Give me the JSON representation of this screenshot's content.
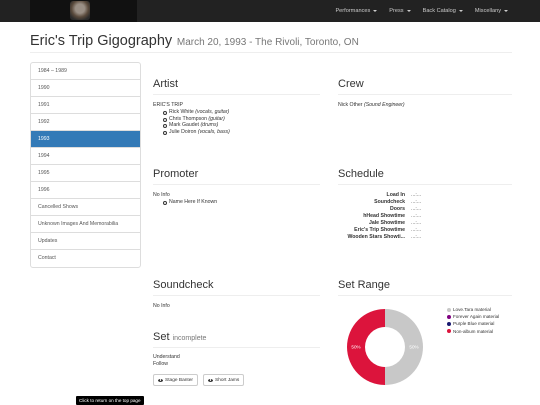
{
  "nav": {
    "items": [
      {
        "label": "Performances"
      },
      {
        "label": "Press"
      },
      {
        "label": "Back Catalog"
      },
      {
        "label": "Miscellany"
      }
    ]
  },
  "header": {
    "title": "Eric's Trip Gigography",
    "subtitle": "March 20, 1993 - The Rivoli, Toronto, ON"
  },
  "sidebar": {
    "items": [
      {
        "label": "1984 – 1989",
        "active": false
      },
      {
        "label": "1990",
        "active": false
      },
      {
        "label": "1991",
        "active": false
      },
      {
        "label": "1992",
        "active": false
      },
      {
        "label": "1993",
        "active": true
      },
      {
        "label": "1994",
        "active": false
      },
      {
        "label": "1995",
        "active": false
      },
      {
        "label": "1996",
        "active": false
      },
      {
        "label": "Cancelled Shows",
        "active": false
      },
      {
        "label": "Unknown Images And Memorabilia",
        "active": false
      },
      {
        "label": "Updates",
        "active": false
      },
      {
        "label": "Contact",
        "active": false
      }
    ]
  },
  "artist": {
    "heading": "Artist",
    "band": "ERIC'S TRIP",
    "members": [
      {
        "name": "Rick White",
        "role": "(vocals, guitar)"
      },
      {
        "name": "Chris Thompson",
        "role": "(guitar)"
      },
      {
        "name": "Mark Gaudet",
        "role": "(drums)"
      },
      {
        "name": "Julie Doiron",
        "role": "(vocals, bass)"
      }
    ]
  },
  "crew": {
    "heading": "Crew",
    "name": "Nick Other",
    "role": "(Sound Engineer)"
  },
  "promoter": {
    "heading": "Promoter",
    "info": "No Info",
    "item": "Name Here If Known"
  },
  "schedule": {
    "heading": "Schedule",
    "rows": [
      {
        "label": "Load In",
        "value": "...:..."
      },
      {
        "label": "Soundcheck",
        "value": "...:..."
      },
      {
        "label": "Doors",
        "value": "...:..."
      },
      {
        "label": "hHead Showtime",
        "value": "...:..."
      },
      {
        "label": "Jale Showtime",
        "value": "...:..."
      },
      {
        "label": "Eric's Trip Showtime",
        "value": "...:..."
      },
      {
        "label": "Wooden Stars Showti...",
        "value": "...:..."
      }
    ]
  },
  "soundcheck": {
    "heading": "Soundcheck",
    "info": "No Info"
  },
  "set": {
    "heading": "Set",
    "status": "incomplete",
    "songs": [
      "Understand",
      "Follow"
    ],
    "buttons": [
      {
        "label": "Stage Banter",
        "icon": "eye-icon"
      },
      {
        "label": "Short Jams",
        "icon": "eye-icon"
      }
    ]
  },
  "set_range": {
    "heading": "Set Range"
  },
  "chart_data": {
    "type": "pie",
    "donut": true,
    "categories": [
      "Love.Tara material",
      "Forever Again material",
      "Purple Blue material",
      "Non-album material"
    ],
    "colors": [
      "#c8c8c8",
      "#800080",
      "#191970",
      "#dc143c"
    ],
    "values": [
      50,
      0,
      0,
      50
    ],
    "data_labels": [
      "50%",
      "",
      "",
      "50%"
    ],
    "legend_position": "right"
  },
  "tooltip": {
    "text": "Click to return on the top page"
  }
}
